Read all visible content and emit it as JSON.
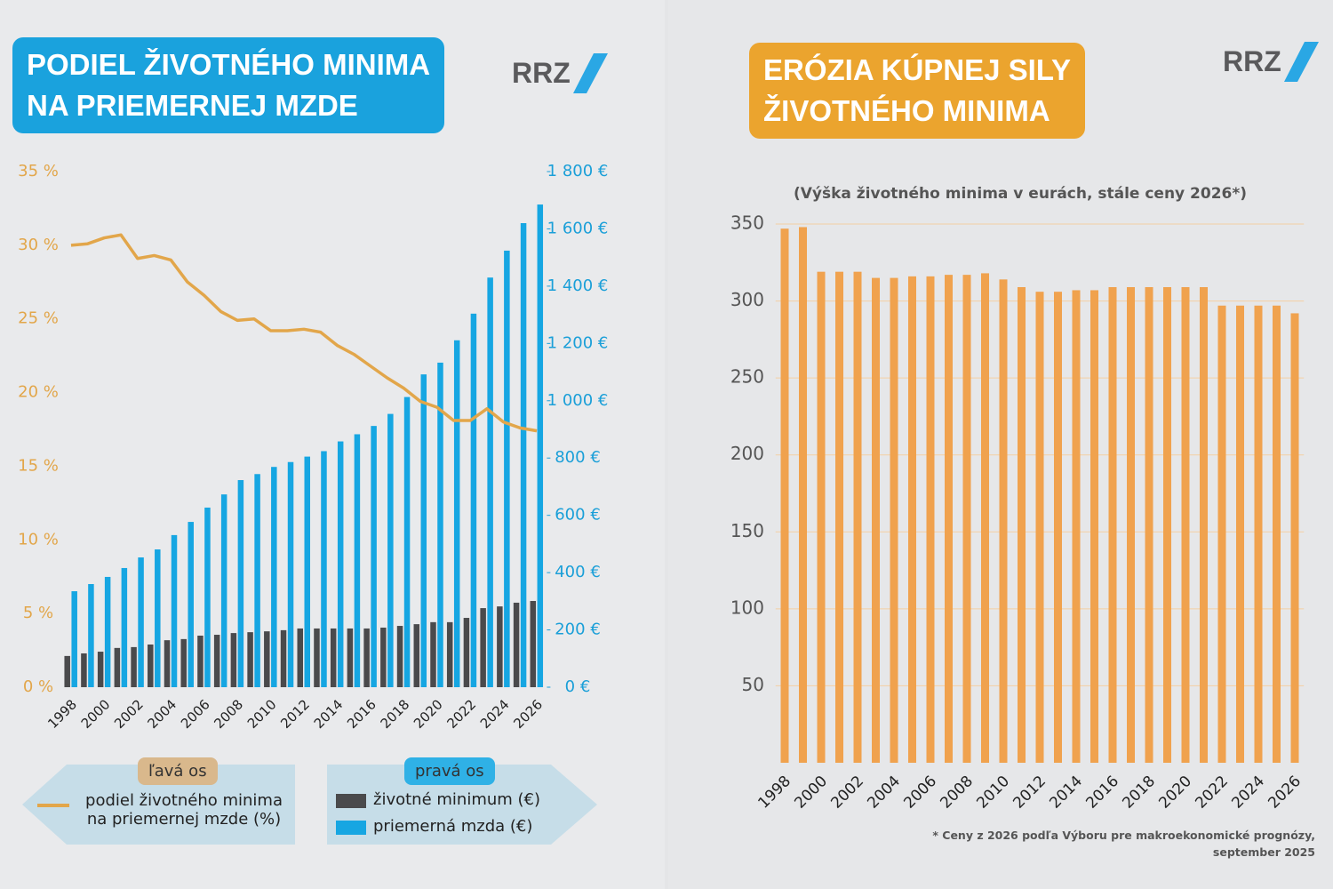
{
  "chart_data": [
    {
      "type": "combo",
      "title": [
        "PODIEL ŽIVOTNÉHO MINIMA",
        "NA PRIEMERNEJ MZDE"
      ],
      "logo": "RRZ",
      "left_axis_legend": "ľavá os",
      "right_axis_legend": "pravá os",
      "categories": [
        "1998",
        null,
        "2000",
        null,
        "2002",
        null,
        "2004",
        null,
        "2006",
        null,
        "2008",
        null,
        "2010",
        null,
        "2012",
        null,
        "2014",
        null,
        "2016",
        null,
        "2018",
        null,
        "2020",
        null,
        "2022",
        null,
        "2024",
        null,
        "2026"
      ],
      "ylim": [
        0,
        35
      ],
      "yticks": [
        {
          "value": 0,
          "label": "0 %"
        },
        {
          "value": 5,
          "label": "5 %"
        },
        {
          "value": 10,
          "label": "10 %"
        },
        {
          "value": 15,
          "label": "15 %"
        },
        {
          "value": 20,
          "label": "20 %"
        },
        {
          "value": 25,
          "label": "25 %"
        },
        {
          "value": 30,
          "label": "30 %"
        },
        {
          "value": 35,
          "label": "35 %"
        }
      ],
      "y2lim": [
        0,
        1800
      ],
      "y2ticks": [
        {
          "value": 0,
          "label": "0 €"
        },
        {
          "value": 200,
          "label": "200 €"
        },
        {
          "value": 400,
          "label": "400 €"
        },
        {
          "value": 600,
          "label": "600 €"
        },
        {
          "value": 800,
          "label": "800 €"
        },
        {
          "value": 1000,
          "label": "1 000 €"
        },
        {
          "value": 1200,
          "label": "1 200 €"
        },
        {
          "value": 1400,
          "label": "1 400 €"
        },
        {
          "value": 1600,
          "label": "1 600 €"
        },
        {
          "value": 1800,
          "label": "1 800 €"
        }
      ],
      "series": [
        {
          "name": "životné minimum (€)",
          "type": "bar",
          "axis": "y2",
          "color": "#4a4a4c",
          "values": [
            109,
            118,
            124,
            137,
            140,
            149,
            164,
            168,
            180,
            183,
            189,
            192,
            195,
            199,
            205,
            205,
            205,
            205,
            205,
            208,
            214,
            220,
            227,
            227,
            242,
            276,
            282,
            295,
            301
          ]
        },
        {
          "name": "priemerná mzda (€)",
          "type": "bar",
          "axis": "y2",
          "color": "#16a6e2",
          "values": [
            335,
            360,
            385,
            416,
            453,
            481,
            531,
            577,
            627,
            673,
            723,
            744,
            769,
            786,
            805,
            824,
            858,
            883,
            912,
            954,
            1013,
            1092,
            1133,
            1211,
            1304,
            1430,
            1524,
            1620,
            1685
          ]
        },
        {
          "name": "podiel životného minima na priemernej mzde (%)",
          "type": "line",
          "axis": "y",
          "color": "#e2a64a",
          "values": [
            30.0,
            30.1,
            30.5,
            30.7,
            29.1,
            29.3,
            29.0,
            27.5,
            26.6,
            25.5,
            24.9,
            25.0,
            24.2,
            24.2,
            24.3,
            24.1,
            23.2,
            22.6,
            21.8,
            21.0,
            20.3,
            19.4,
            19.0,
            18.1,
            18.1,
            18.9,
            18.0,
            17.6,
            17.4
          ]
        }
      ],
      "grid": false
    },
    {
      "type": "bar",
      "title": [
        "ERÓZIA KÚPNEJ SILY",
        "ŽIVOTNÉHO MINIMA"
      ],
      "logo": "RRZ",
      "subtitle": "(Výška životného minima v eurách, stále ceny 2026*)",
      "note": "* Ceny z 2026 podľa Výboru pre makroekonomické prognózy, september 2025",
      "categories": [
        "1998",
        null,
        "2000",
        null,
        "2002",
        null,
        "2004",
        null,
        "2006",
        null,
        "2008",
        null,
        "2010",
        null,
        "2012",
        null,
        "2014",
        null,
        "2016",
        null,
        "2018",
        null,
        "2020",
        null,
        "2022",
        null,
        "2024",
        null,
        "2026"
      ],
      "values": [
        347,
        348,
        319,
        319,
        319,
        315,
        315,
        316,
        316,
        317,
        317,
        318,
        314,
        309,
        306,
        306,
        307,
        307,
        309,
        309,
        309,
        309,
        309,
        309,
        297,
        297,
        297,
        297,
        292
      ],
      "color": "#f0a24e",
      "ylim": [
        0,
        350
      ],
      "yticks": [
        50,
        100,
        150,
        200,
        250,
        300,
        350
      ],
      "grid": true
    }
  ]
}
